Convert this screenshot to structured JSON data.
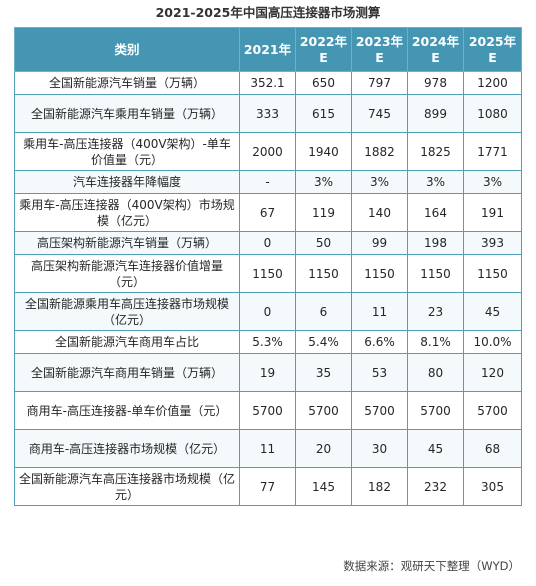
{
  "title": "2021-2025年中国高压连接器市场测算",
  "table": {
    "headers": [
      "类别",
      "2021年",
      "2022年E",
      "2023年E",
      "2024年E",
      "2025年E"
    ],
    "rows": [
      {
        "label": "全国新能源汽车销量（万辆）",
        "values": [
          "352.1",
          "650",
          "797",
          "978",
          "1200"
        ]
      },
      {
        "label": "全国新能源汽车乘用车销量（万辆）",
        "values": [
          "333",
          "615",
          "745",
          "899",
          "1080"
        ]
      },
      {
        "label": "乘用车-高压连接器（400V架构）-单车价值量（元）",
        "values": [
          "2000",
          "1940",
          "1882",
          "1825",
          "1771"
        ]
      },
      {
        "label": "汽车连接器年降幅度",
        "values": [
          "-",
          "3%",
          "3%",
          "3%",
          "3%"
        ]
      },
      {
        "label": "乘用车-高压连接器（400V架构）市场规模（亿元）",
        "values": [
          "67",
          "119",
          "140",
          "164",
          "191"
        ]
      },
      {
        "label": "高压架构新能源汽车销量（万辆）",
        "values": [
          "0",
          "50",
          "99",
          "198",
          "393"
        ]
      },
      {
        "label": "高压架构新能源汽车连接器价值增量（元）",
        "values": [
          "1150",
          "1150",
          "1150",
          "1150",
          "1150"
        ]
      },
      {
        "label": "全国新能源乘用车高压连接器市场规模（亿元）",
        "values": [
          "0",
          "6",
          "11",
          "23",
          "45"
        ]
      },
      {
        "label": "全国新能源汽车商用车占比",
        "values": [
          "5.3%",
          "5.4%",
          "6.6%",
          "8.1%",
          "10.0%"
        ]
      },
      {
        "label": "全国新能源汽车商用车销量（万辆）",
        "values": [
          "19",
          "35",
          "53",
          "80",
          "120"
        ]
      },
      {
        "label": "商用车-高压连接器-单车价值量（元）",
        "values": [
          "5700",
          "5700",
          "5700",
          "5700",
          "5700"
        ]
      },
      {
        "label": "商用车-高压连接器市场规模（亿元）",
        "values": [
          "11",
          "20",
          "30",
          "45",
          "68"
        ]
      },
      {
        "label": "全国新能源汽车高压连接器市场规模（亿元）",
        "values": [
          "77",
          "145",
          "182",
          "232",
          "305"
        ]
      }
    ]
  },
  "source": "数据来源：观研天下整理（WYD）"
}
